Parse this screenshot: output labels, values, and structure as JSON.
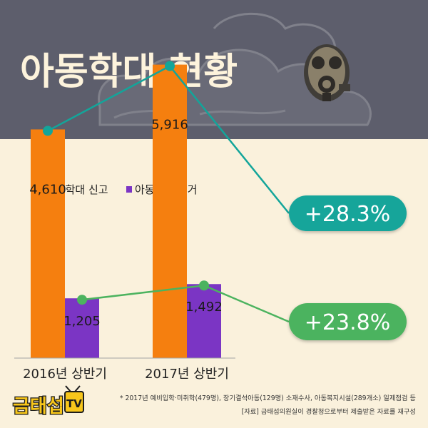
{
  "header": {
    "title": "아동학대 현황"
  },
  "chart_data": {
    "type": "bar",
    "categories": [
      "2016년 상반기",
      "2017년 상반기"
    ],
    "series": [
      {
        "name": "아동학대 신고",
        "values": [
          4610,
          5916
        ],
        "labels": [
          "4,610",
          "5,916"
        ],
        "color": "#f57f0f"
      },
      {
        "name": "아동학대 검거",
        "values": [
          1205,
          1492
        ],
        "labels": [
          "1,205",
          "1,492"
        ],
        "color": "#7b35c4"
      }
    ],
    "growth": [
      {
        "label": "+28.3%",
        "color": "#13a59a"
      },
      {
        "label": "+23.8%",
        "color": "#4cb35f"
      }
    ],
    "ylim": [
      0,
      6500
    ]
  },
  "footer": {
    "logo_text": "금태섭",
    "logo_tv": "TV",
    "note": "* 2017년 예비입학·미취학(479명), 장기결석아동(129명) 소재수사, 아동복지시설(289개소) 일제점검 등",
    "source": "[자료] 금태섭의원실이 경찰청으로부터 제출받은 자료를 재구성"
  }
}
